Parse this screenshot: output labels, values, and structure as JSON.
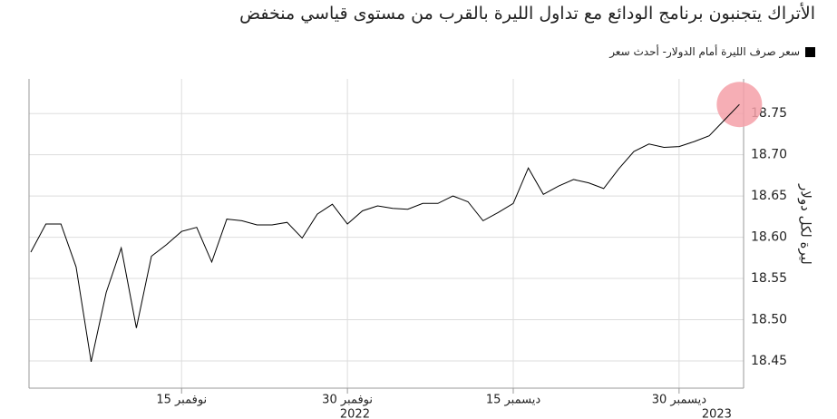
{
  "chart_data": {
    "type": "line",
    "title": "الأتراك يتجنبون برنامج الودائع مع تداول الليرة بالقرب من مستوى قياسي منخفض",
    "y_label": "ليرة لكل دولار",
    "categories": [
      "2022-11-01",
      "2022-11-02",
      "2022-11-03",
      "2022-11-04",
      "2022-11-07",
      "2022-11-08",
      "2022-11-09",
      "2022-11-10",
      "2022-11-11",
      "2022-11-14",
      "2022-11-15",
      "2022-11-16",
      "2022-11-17",
      "2022-11-18",
      "2022-11-21",
      "2022-11-22",
      "2022-11-23",
      "2022-11-24",
      "2022-11-25",
      "2022-11-28",
      "2022-11-29",
      "2022-11-30",
      "2022-12-01",
      "2022-12-02",
      "2022-12-05",
      "2022-12-06",
      "2022-12-07",
      "2022-12-08",
      "2022-12-09",
      "2022-12-12",
      "2022-12-13",
      "2022-12-14",
      "2022-12-15",
      "2022-12-16",
      "2022-12-19",
      "2022-12-20",
      "2022-12-21",
      "2022-12-22",
      "2022-12-23",
      "2022-12-26",
      "2022-12-27",
      "2022-12-28",
      "2022-12-29",
      "2022-12-30",
      "2023-01-02",
      "2023-01-03",
      "2023-01-04",
      "2023-01-05"
    ],
    "series": [
      {
        "name": "سعر صرف الليرة أمام الدولار- أحدث سعر",
        "color": "#000000",
        "values": [
          18.582,
          18.616,
          18.616,
          18.564,
          18.449,
          18.533,
          18.587,
          18.49,
          18.577,
          18.591,
          18.607,
          18.612,
          18.57,
          18.622,
          18.62,
          18.615,
          18.615,
          18.618,
          18.599,
          18.628,
          18.64,
          18.616,
          18.632,
          18.638,
          18.635,
          18.634,
          18.641,
          18.641,
          18.65,
          18.643,
          18.62,
          18.63,
          18.641,
          18.684,
          18.652,
          18.662,
          18.67,
          18.666,
          18.659,
          18.683,
          18.704,
          18.713,
          18.709,
          18.71,
          18.716,
          18.723,
          18.742,
          18.761
        ]
      }
    ],
    "highlight_color": "#f4a0a8",
    "xticks": [
      {
        "value": "2022-11-15",
        "label": "15 نوفمبر"
      },
      {
        "value": "2022-11-30",
        "label": "30 نوفمبر"
      },
      {
        "value": "2022-12-15",
        "label": "15 ديسمبر"
      },
      {
        "value": "2022-12-30",
        "label": "30 ديسمبر"
      }
    ],
    "years": [
      "2022",
      "2023"
    ],
    "ylim": [
      18.417,
      18.792
    ],
    "yticks": [
      18.45,
      {
        "value": 18.5,
        "label": "18.50"
      },
      18.55,
      {
        "value": 18.6,
        "label": "18.60"
      },
      18.65,
      {
        "value": 18.7,
        "label": "18.70"
      },
      18.75
    ],
    "grid": true
  }
}
